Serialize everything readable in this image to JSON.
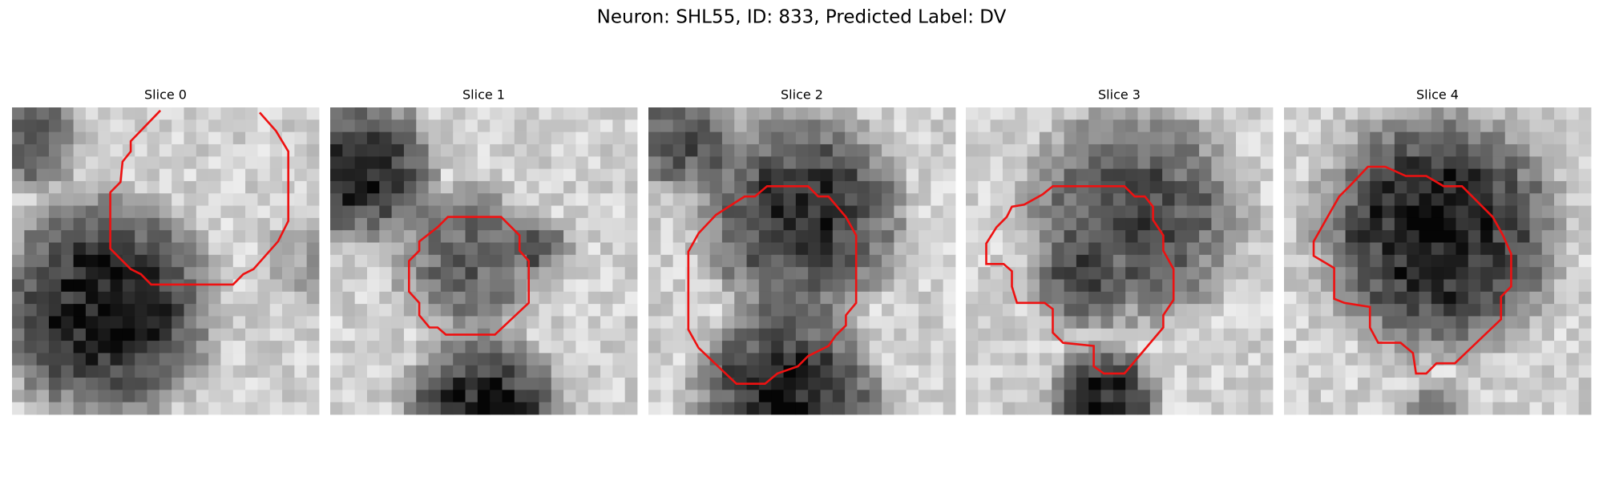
{
  "title": "Neuron: SHL55, ID: 833, Predicted Label: DV",
  "panels": [
    {
      "title": "Slice 0"
    },
    {
      "title": "Slice 1"
    },
    {
      "title": "Slice 2"
    },
    {
      "title": "Slice 3"
    },
    {
      "title": "Slice 4"
    }
  ]
}
